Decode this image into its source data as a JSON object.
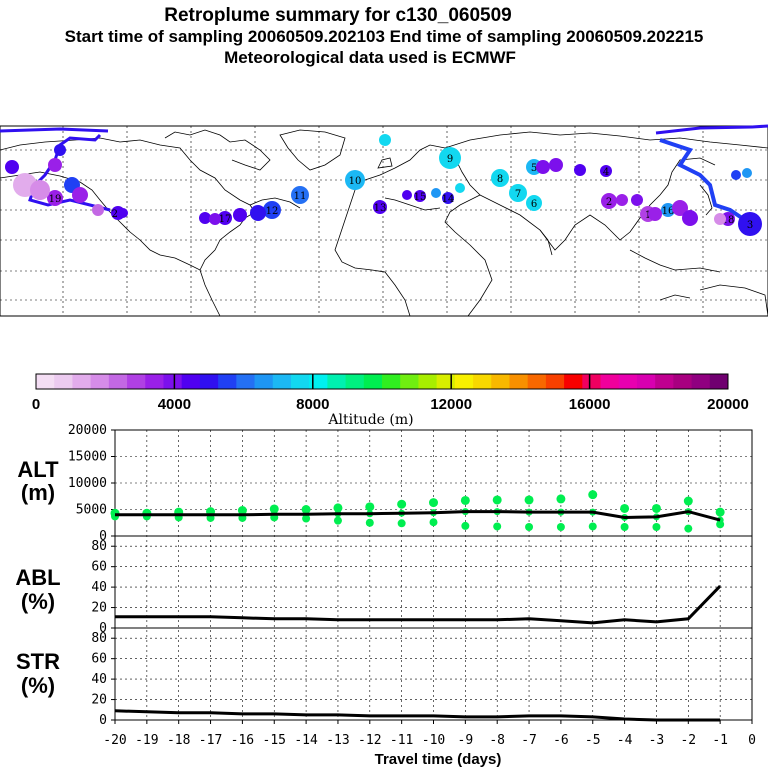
{
  "header": {
    "title": "Retroplume summary for c130_060509",
    "sampling": "Start time of sampling 20060509.202103     End time of sampling 20060509.202215",
    "meteo": "Meteorological data used is ECMWF"
  },
  "colorbar": {
    "title": "Altitude (m)",
    "labels": [
      "0",
      "4000",
      "8000",
      "12000",
      "16000",
      "20000"
    ],
    "colors": [
      "#f4def4",
      "#eccbf0",
      "#e2acec",
      "#d68ce8",
      "#c368e4",
      "#b040e4",
      "#9a20e8",
      "#7c10ec",
      "#5000f0",
      "#3010f0",
      "#2040f4",
      "#2470f4",
      "#1e96f4",
      "#1cb8f4",
      "#12d8f0",
      "#00f0f0",
      "#00f0b0",
      "#00f080",
      "#00ee50",
      "#30ee20",
      "#70ee10",
      "#a8ee00",
      "#d8ee00",
      "#f8f000",
      "#f8d800",
      "#f8b800",
      "#f89000",
      "#f86800",
      "#f84000",
      "#f80000",
      "#f00060",
      "#f0009c",
      "#e800b0",
      "#d800b0",
      "#c00090",
      "#a80080",
      "#900080",
      "#700070"
    ]
  },
  "panels": {
    "alt": {
      "name": "ALT",
      "unit": "(m)",
      "yticks": [
        "0",
        "5000",
        "10000",
        "15000",
        "20000"
      ]
    },
    "abl": {
      "name": "ABL",
      "unit": "(%)",
      "yticks": [
        "0",
        "20",
        "40",
        "60",
        "80"
      ]
    },
    "str": {
      "name": "STR",
      "unit": "(%)",
      "yticks": [
        "0",
        "20",
        "40",
        "60",
        "80"
      ]
    }
  },
  "xaxis": {
    "label": "Travel time (days)",
    "ticks": [
      "-20",
      "-19",
      "-18",
      "-17",
      "-16",
      "-15",
      "-14",
      "-13",
      "-12",
      "-11",
      "-10",
      "-9",
      "-8",
      "-7",
      "-6",
      "-5",
      "-4",
      "-3",
      "-2",
      "-1",
      "0"
    ]
  },
  "map": {
    "day_markers": [
      {
        "label": "1",
        "color": "#b040e4"
      },
      {
        "label": "2",
        "color": "#9a20e8"
      },
      {
        "label": "3",
        "color": "#3010f0"
      },
      {
        "label": "4",
        "color": "#5000f0"
      },
      {
        "label": "5",
        "color": "#1cb8f4"
      },
      {
        "label": "6",
        "color": "#12d8f0"
      },
      {
        "label": "7",
        "color": "#12d8f0"
      },
      {
        "label": "8",
        "color": "#12d8f0"
      },
      {
        "label": "9",
        "color": "#12d8f0"
      },
      {
        "label": "10",
        "color": "#1cb8f4"
      },
      {
        "label": "11",
        "color": "#2470f4"
      },
      {
        "label": "12",
        "color": "#2040f4"
      },
      {
        "label": "13",
        "color": "#5000f0"
      },
      {
        "label": "14",
        "color": "#3010f0"
      },
      {
        "label": "15",
        "color": "#5000f0"
      },
      {
        "label": "16",
        "color": "#1e96f4"
      },
      {
        "label": "17",
        "color": "#5000f0"
      },
      {
        "label": "18",
        "color": "#7c10ec"
      },
      {
        "label": "19",
        "color": "#9a20e8"
      },
      {
        "label": "20",
        "color": "#5000f0"
      }
    ]
  },
  "chart_data": {
    "type": "line",
    "x": [
      -20,
      -19,
      -18,
      -17,
      -16,
      -15,
      -14,
      -13,
      -12,
      -11,
      -10,
      -9,
      -8,
      -7,
      -6,
      -5,
      -4,
      -3,
      -2,
      -1
    ],
    "xlabel": "Travel time (days)",
    "xlim": [
      -20,
      0
    ],
    "series": [
      {
        "name": "ALT (m)",
        "ylim": [
          0,
          20000
        ],
        "values": [
          4000,
          4000,
          4000,
          4000,
          4000,
          4100,
          4100,
          4200,
          4200,
          4300,
          4400,
          4600,
          4600,
          4500,
          4500,
          4500,
          3500,
          3600,
          4600,
          3000
        ]
      },
      {
        "name": "ABL (%)",
        "ylim": [
          0,
          90
        ],
        "values": [
          11,
          11,
          11,
          11,
          10,
          9,
          9,
          8,
          8,
          8,
          8,
          8,
          8,
          9,
          7,
          5,
          8,
          6,
          9,
          41
        ]
      },
      {
        "name": "STR (%)",
        "ylim": [
          0,
          90
        ],
        "values": [
          9,
          8,
          7,
          7,
          6,
          6,
          5,
          5,
          4,
          4,
          4,
          3,
          3,
          4,
          4,
          3,
          1,
          0,
          0,
          0
        ]
      }
    ],
    "alt_clusters": {
      "high": [
        4300,
        4300,
        4500,
        4600,
        4800,
        5100,
        5000,
        5300,
        5500,
        6000,
        6300,
        6700,
        6800,
        6800,
        7000,
        7800,
        5200,
        5200,
        6600,
        4500
      ],
      "low": [
        3700,
        3700,
        3500,
        3400,
        3400,
        3500,
        3300,
        2900,
        2500,
        2400,
        2600,
        1900,
        1800,
        1700,
        1700,
        1800,
        1700,
        1700,
        1400,
        2200
      ]
    }
  }
}
